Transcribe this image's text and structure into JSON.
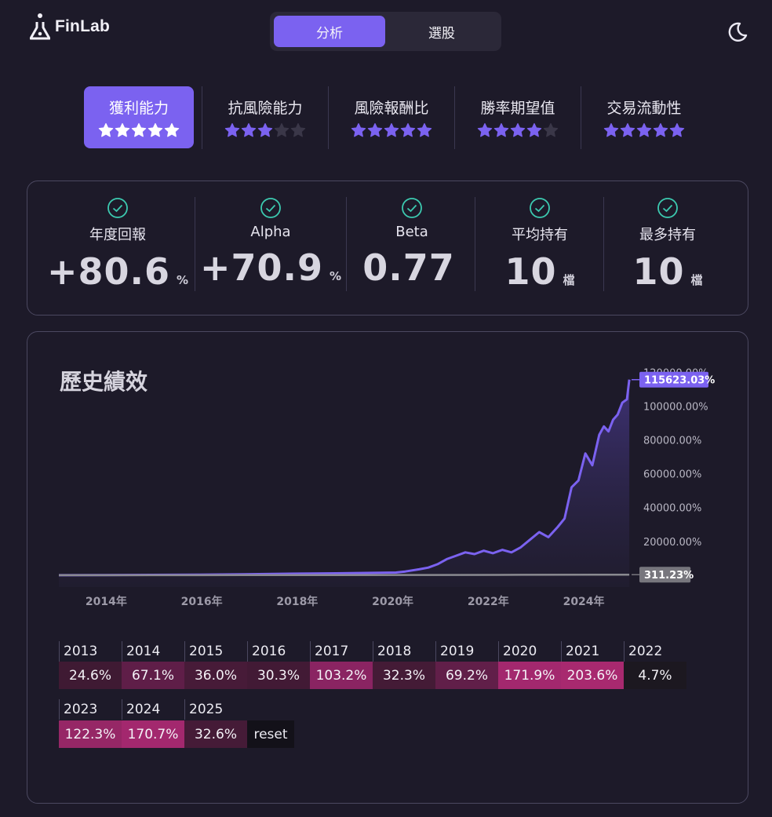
{
  "header": {
    "logo_text": "FinLab",
    "tabs": [
      {
        "label": "分析",
        "active": true
      },
      {
        "label": "選股",
        "active": false
      }
    ],
    "theme_icon": "moon-icon"
  },
  "ratings": [
    {
      "label": "獲利能力",
      "stars": 5,
      "active": true
    },
    {
      "label": "抗風險能力",
      "stars": 3,
      "active": false
    },
    {
      "label": "風險報酬比",
      "stars": 5,
      "active": false
    },
    {
      "label": "勝率期望值",
      "stars": 4,
      "active": false
    },
    {
      "label": "交易流動性",
      "stars": 5,
      "active": false
    }
  ],
  "metrics": [
    {
      "label": "年度回報",
      "value": "+80.6",
      "unit": "%"
    },
    {
      "label": "Alpha",
      "value": "+70.9",
      "unit": "%"
    },
    {
      "label": "Beta",
      "value": "0.77",
      "unit": ""
    },
    {
      "label": "平均持有",
      "value": "10",
      "unit": "檔"
    },
    {
      "label": "最多持有",
      "value": "10",
      "unit": "檔"
    }
  ],
  "colors": {
    "accent": "#7b62f0",
    "strategy_line": "#7b62f0",
    "benchmark_line": "#8a8a90",
    "background": "#1d1a29"
  },
  "chart_data": {
    "type": "area",
    "title": "歷史績效",
    "xlabel": "",
    "ylabel": "",
    "x_tick_labels": [
      "2014年",
      "2016年",
      "2018年",
      "2020年",
      "2022年",
      "2024年"
    ],
    "y_tick_labels": [
      "120000.00%",
      "100000.00%",
      "80000.00%",
      "60000.00%",
      "40000.00%",
      "20000.00%"
    ],
    "ylim": [
      -7000,
      122000
    ],
    "xlim": [
      2013.0,
      2025.4
    ],
    "grid": false,
    "series": [
      {
        "name": "",
        "last_value_label": "115623.03%",
        "x": [
          2013.0,
          2014.0,
          2015.0,
          2016.0,
          2017.0,
          2017.5,
          2018.0,
          2018.5,
          2019.0,
          2019.5,
          2020.0,
          2020.3,
          2020.5,
          2020.8,
          2021.0,
          2021.2,
          2021.4,
          2021.6,
          2021.8,
          2022.0,
          2022.2,
          2022.4,
          2022.6,
          2022.8,
          2023.0,
          2023.2,
          2023.4,
          2023.6,
          2023.8,
          2023.95,
          2024.1,
          2024.25,
          2024.4,
          2024.55,
          2024.7,
          2024.8,
          2024.9,
          2025.0,
          2025.1,
          2025.2,
          2025.3,
          2025.35
        ],
        "values": [
          0,
          100,
          200,
          300,
          500,
          700,
          900,
          1000,
          1100,
          1300,
          1500,
          1600,
          2200,
          3500,
          4500,
          6500,
          9500,
          11500,
          13500,
          12500,
          14500,
          13000,
          15000,
          13500,
          16500,
          21000,
          25500,
          22500,
          28500,
          33500,
          52000,
          56000,
          72000,
          65000,
          83000,
          88000,
          85000,
          92000,
          95000,
          102000,
          104000,
          115623
        ]
      },
      {
        "name": "",
        "last_value_label": "311.23%",
        "x": [
          2013.0,
          2015.0,
          2017.0,
          2019.0,
          2021.0,
          2023.0,
          2025.35
        ],
        "values": [
          0,
          20,
          60,
          100,
          160,
          220,
          311
        ]
      }
    ]
  },
  "yearly_returns": [
    {
      "year": "2013",
      "value": "24.6%",
      "color": "#3f1a33"
    },
    {
      "year": "2014",
      "value": "67.1%",
      "color": "#5f1e48"
    },
    {
      "year": "2015",
      "value": "36.0%",
      "color": "#471b38"
    },
    {
      "year": "2016",
      "value": "30.3%",
      "color": "#421a35"
    },
    {
      "year": "2017",
      "value": "103.2%",
      "color": "#8a2462"
    },
    {
      "year": "2018",
      "value": "32.3%",
      "color": "#441b36"
    },
    {
      "year": "2019",
      "value": "69.2%",
      "color": "#611f49"
    },
    {
      "year": "2020",
      "value": "171.9%",
      "color": "#a3286e"
    },
    {
      "year": "2021",
      "value": "203.6%",
      "color": "#a8296f"
    },
    {
      "year": "2022",
      "value": "4.7%",
      "color": "#1c1820"
    },
    {
      "year": "2023",
      "value": "122.3%",
      "color": "#962766"
    },
    {
      "year": "2024",
      "value": "170.7%",
      "color": "#a3286e"
    },
    {
      "year": "2025",
      "value": "32.6%",
      "color": "#451b37"
    }
  ],
  "reset_label": "reset"
}
